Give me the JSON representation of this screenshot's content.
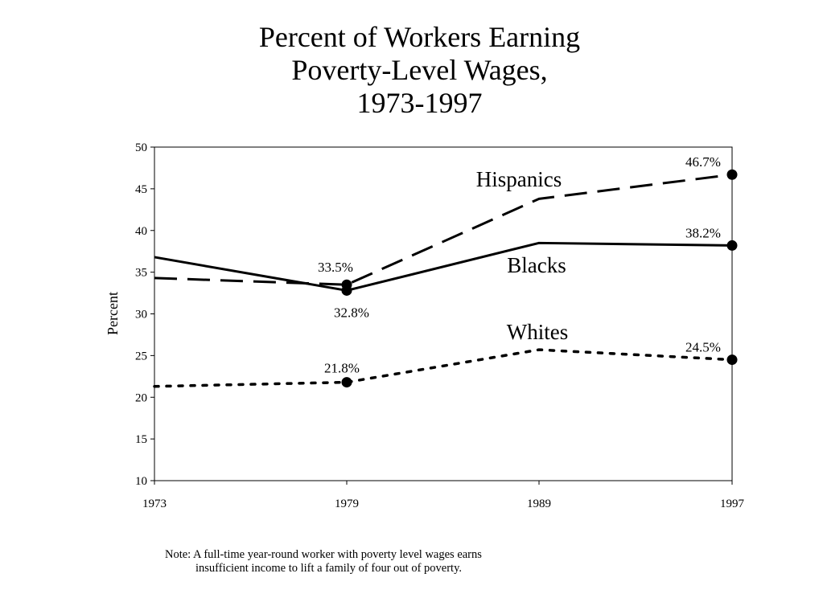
{
  "title_lines": [
    "Percent of Workers Earning",
    "Poverty-Level Wages,",
    "1973-1997"
  ],
  "note_lines": [
    "Note: A full-time year-round worker with poverty level wages earns",
    "insufficient income to lift a family of four out of poverty."
  ],
  "chart_data": {
    "type": "line",
    "title": "Percent of Workers Earning Poverty-Level Wages, 1973-1997",
    "xlabel": "",
    "ylabel": "Percent",
    "x": [
      1973,
      1979,
      1989,
      1997
    ],
    "xtick_labels": [
      "1973",
      "1979",
      "1989",
      "1997"
    ],
    "ylim": [
      10,
      50
    ],
    "yticks": [
      10,
      15,
      20,
      25,
      30,
      35,
      40,
      45,
      50
    ],
    "grid": false,
    "series": [
      {
        "name": "Hispanics",
        "style": "dashed",
        "values": [
          34.3,
          33.5,
          43.8,
          46.7
        ],
        "markers": [
          1,
          3
        ],
        "labels": [
          "",
          "33.5%",
          "",
          "46.7%"
        ]
      },
      {
        "name": "Blacks",
        "style": "solid",
        "values": [
          36.8,
          32.8,
          38.5,
          38.2
        ],
        "markers": [
          1,
          3
        ],
        "labels": [
          "",
          "32.8%",
          "",
          "38.2%"
        ]
      },
      {
        "name": "Whites",
        "style": "dotted",
        "values": [
          21.3,
          21.8,
          25.7,
          24.5
        ],
        "markers": [
          1,
          3
        ],
        "labels": [
          "",
          "21.8%",
          "",
          "24.5%"
        ]
      }
    ]
  }
}
